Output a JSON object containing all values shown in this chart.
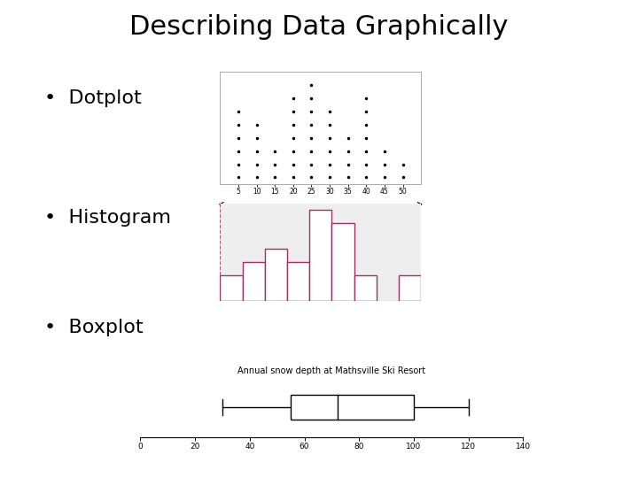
{
  "title": "Describing Data Graphically",
  "bullet_labels": [
    "Dotplot",
    "Histogram",
    "Boxplot"
  ],
  "background": "#ffffff",
  "title_fontsize": 22,
  "bullet_fontsize": 16,
  "dotplot": {
    "x_labels": [
      "5",
      "10",
      "15",
      "20",
      "25",
      "30",
      "35",
      "40",
      "45",
      "50"
    ],
    "x_vals": [
      5,
      10,
      15,
      20,
      25,
      30,
      35,
      40,
      45,
      50
    ],
    "counts": [
      6,
      5,
      3,
      7,
      8,
      6,
      4,
      7,
      3,
      2
    ]
  },
  "histogram": {
    "bar_heights": [
      2,
      3,
      4,
      3,
      7,
      6,
      2,
      0,
      2
    ],
    "bar_color": "#a03060",
    "bg_color": "#eeeeee"
  },
  "boxplot": {
    "whisker_low": 30,
    "q1": 55,
    "median": 72,
    "q3": 100,
    "whisker_high": 120,
    "x_min": 0,
    "x_max": 140,
    "x_ticks": [
      0,
      20,
      40,
      60,
      80,
      100,
      120,
      140
    ],
    "title": "Annual snow depth at Mathsville Ski Resort"
  }
}
